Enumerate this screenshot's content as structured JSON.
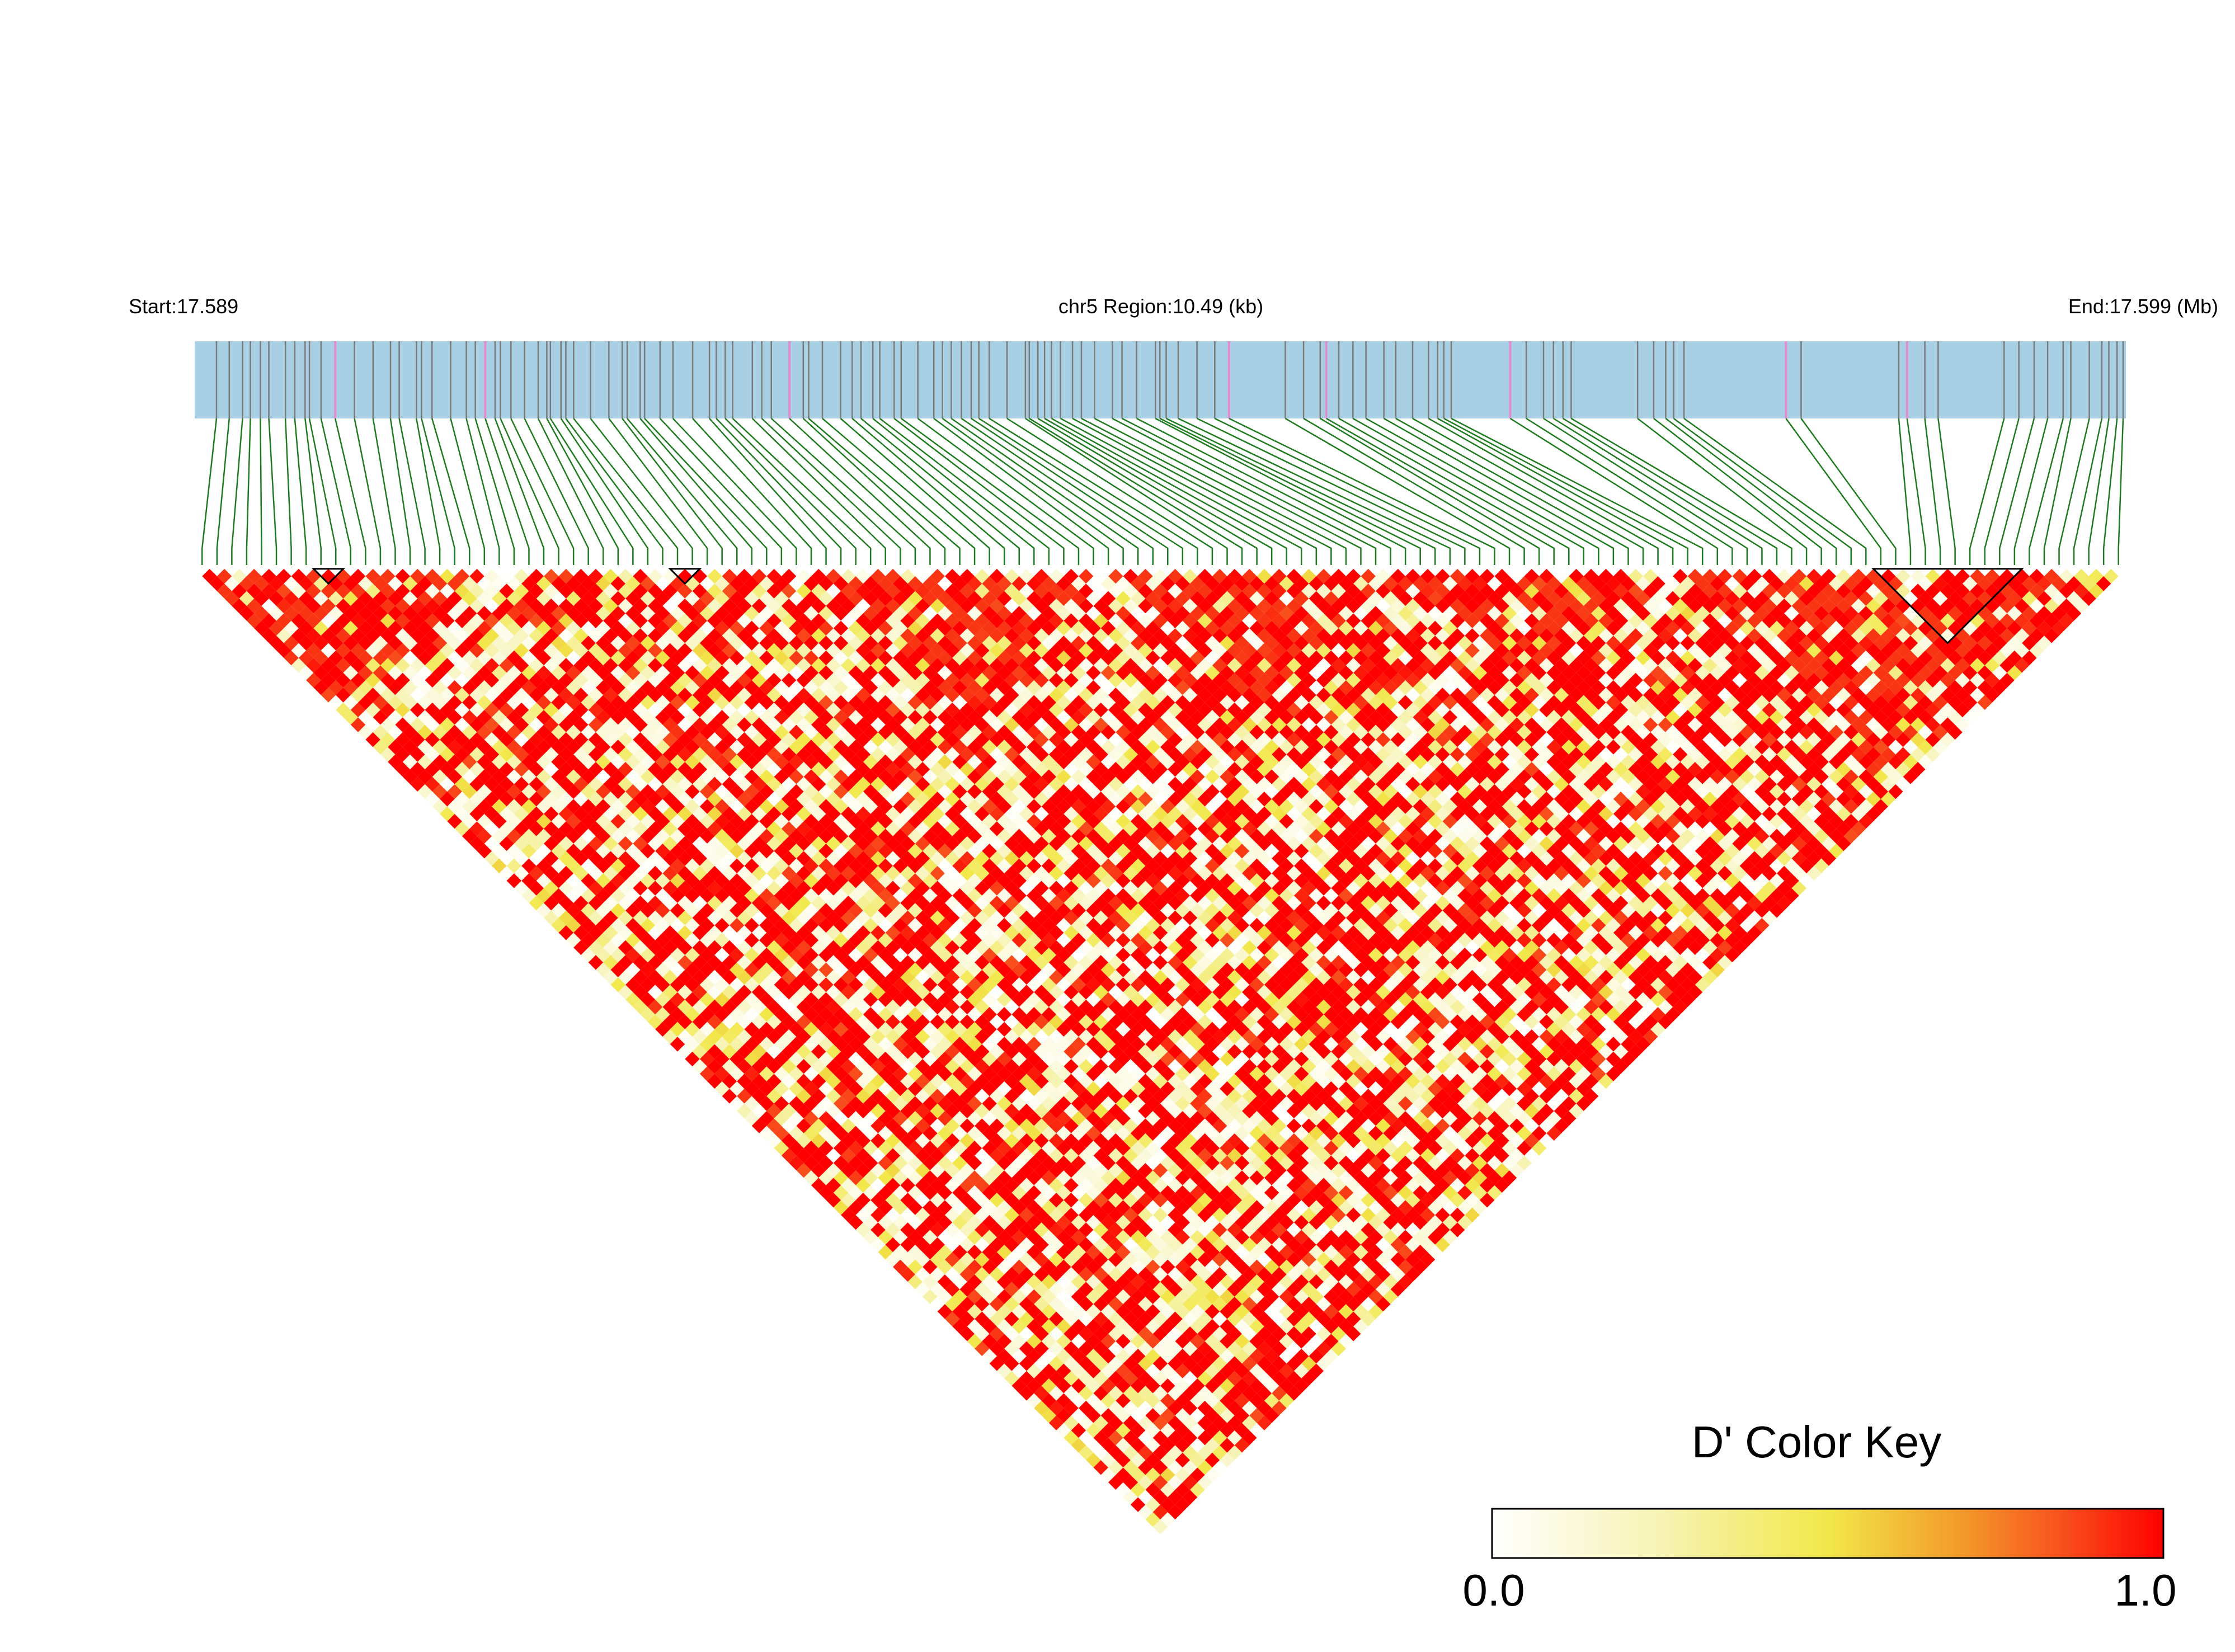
{
  "chart_data": {
    "type": "heatmap",
    "subtype": "linkage-disequilibrium-triangle",
    "header": {
      "start_label": "Start:17.589",
      "region_label": "chr5 Region:10.49 (kb)",
      "end_label": "End:17.599 (Mb)"
    },
    "region": {
      "chrom": "chr5",
      "start_mb": 17.589,
      "end_mb": 17.599,
      "length_kb": 10.49
    },
    "snp_count": 130,
    "metric": "D'",
    "color_key": {
      "title": "D' Color Key",
      "min_label": "0.0",
      "max_label": "1.0",
      "range": [
        0,
        1
      ],
      "colors": [
        "#ffffff",
        "#f2e84a",
        "#ff0000"
      ]
    },
    "colors": {
      "track_fill": "#a8cfe3",
      "track_snp_tick": "#7a7a7a",
      "track_highlight_tick": "#e58ad0",
      "connector_line": "#1e7b1e",
      "block_outline": "#000000"
    }
  }
}
